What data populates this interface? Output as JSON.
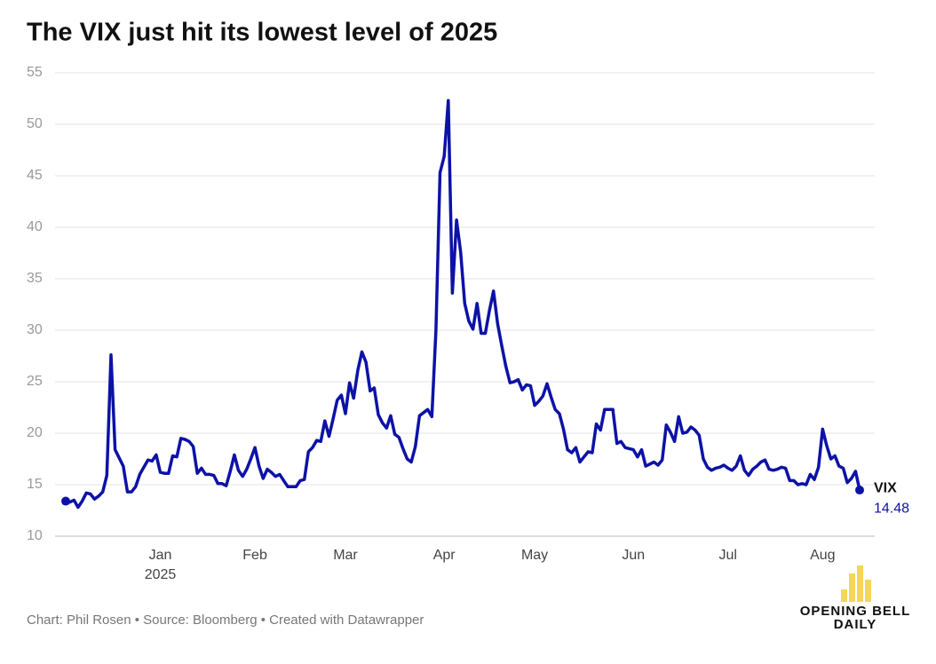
{
  "chart_data": {
    "type": "line",
    "title": "The VIX just hit its lowest level of 2025",
    "year_label": "2025",
    "note": "Chart: Phil Rosen • Source: Bloomberg • Created with Datawrapper",
    "ylim": [
      10,
      55
    ],
    "yticks": [
      10,
      15,
      20,
      25,
      30,
      35,
      40,
      45,
      50,
      55
    ],
    "grid": true,
    "categories": [
      null,
      null,
      null,
      null,
      null,
      null,
      null,
      null,
      null,
      null,
      null,
      null,
      null,
      null,
      null,
      null,
      null,
      null,
      null,
      null,
      null,
      null,
      null,
      "Jan",
      null,
      null,
      null,
      null,
      null,
      null,
      null,
      null,
      null,
      null,
      null,
      null,
      null,
      null,
      null,
      null,
      null,
      null,
      null,
      null,
      null,
      null,
      "Feb",
      null,
      null,
      null,
      null,
      null,
      null,
      null,
      null,
      null,
      null,
      null,
      null,
      null,
      null,
      null,
      null,
      null,
      null,
      null,
      null,
      null,
      "Mar",
      null,
      null,
      null,
      null,
      null,
      null,
      null,
      null,
      null,
      null,
      null,
      null,
      null,
      null,
      null,
      null,
      null,
      null,
      null,
      null,
      null,
      null,
      null,
      "Apr",
      null,
      null,
      null,
      null,
      null,
      null,
      null,
      null,
      null,
      null,
      null,
      null,
      null,
      null,
      null,
      null,
      null,
      null,
      null,
      null,
      null,
      "May",
      null,
      null,
      null,
      null,
      null,
      null,
      null,
      null,
      null,
      null,
      null,
      null,
      null,
      null,
      null,
      null,
      null,
      null,
      null,
      null,
      null,
      null,
      null,
      "Jun",
      null,
      null,
      null,
      null,
      null,
      null,
      null,
      null,
      null,
      null,
      null,
      null,
      null,
      null,
      null,
      null,
      null,
      null,
      null,
      null,
      null,
      null,
      "Jul",
      null,
      null,
      null,
      null,
      null,
      null,
      null,
      null,
      null,
      null,
      null,
      null,
      null,
      null,
      null,
      null,
      null,
      null,
      null,
      null,
      null,
      null,
      "Aug",
      null,
      null,
      null,
      null,
      null,
      null,
      null,
      null,
      null
    ],
    "series": [
      {
        "name": "VIX",
        "color": "#0d12a6",
        "values": [
          13.4,
          13.3,
          13.5,
          12.8,
          13.4,
          14.2,
          14.1,
          13.6,
          13.9,
          14.3,
          15.9,
          27.6,
          18.4,
          17.6,
          16.8,
          14.3,
          14.3,
          14.8,
          16.0,
          16.7,
          17.4,
          17.3,
          17.9,
          16.2,
          16.1,
          16.1,
          17.8,
          17.7,
          19.5,
          19.4,
          19.2,
          18.7,
          16.1,
          16.6,
          16.0,
          16.0,
          15.9,
          15.1,
          15.1,
          14.9,
          16.3,
          17.9,
          16.4,
          15.8,
          16.5,
          17.5,
          18.6,
          16.8,
          15.6,
          16.5,
          16.2,
          15.8,
          16.0,
          15.4,
          14.8,
          14.8,
          14.8,
          15.4,
          15.5,
          18.2,
          18.6,
          19.3,
          19.2,
          21.2,
          19.7,
          21.4,
          23.2,
          23.7,
          21.9,
          24.9,
          23.4,
          26.1,
          27.9,
          26.9,
          24.1,
          24.4,
          21.8,
          21.0,
          20.5,
          21.7,
          19.9,
          19.6,
          18.5,
          17.5,
          17.2,
          18.7,
          21.7,
          22.0,
          22.3,
          21.6,
          30.0,
          45.3,
          46.9,
          52.3,
          33.6,
          40.7,
          37.6,
          32.6,
          30.9,
          30.1,
          32.6,
          29.7,
          29.7,
          31.9,
          33.8,
          30.6,
          28.5,
          26.5,
          24.9,
          25.0,
          25.2,
          24.2,
          24.7,
          24.6,
          22.7,
          23.1,
          23.6,
          24.8,
          23.5,
          22.3,
          21.9,
          20.4,
          18.4,
          18.1,
          18.6,
          17.2,
          17.7,
          18.2,
          18.1,
          20.9,
          20.3,
          22.3,
          22.3,
          22.3,
          19.0,
          19.2,
          18.6,
          18.5,
          18.4,
          17.7,
          18.4,
          16.8,
          17.0,
          17.2,
          16.9,
          17.4,
          20.8,
          20.1,
          19.2,
          21.6,
          20.0,
          20.1,
          20.6,
          20.3,
          19.8,
          17.5,
          16.7,
          16.4,
          16.6,
          16.7,
          16.9,
          16.6,
          16.4,
          16.8,
          17.8,
          16.4,
          15.9,
          16.5,
          16.8,
          17.2,
          17.4,
          16.5,
          16.4,
          16.5,
          16.7,
          16.6,
          15.4,
          15.4,
          15.0,
          15.1,
          15.0,
          16.0,
          15.5,
          16.7,
          20.4,
          18.8,
          17.5,
          17.8,
          16.8,
          16.6,
          15.2,
          15.6,
          16.3,
          14.48
        ]
      }
    ]
  },
  "logo": {
    "line1": "OPENING BELL",
    "line2": "DAILY"
  }
}
